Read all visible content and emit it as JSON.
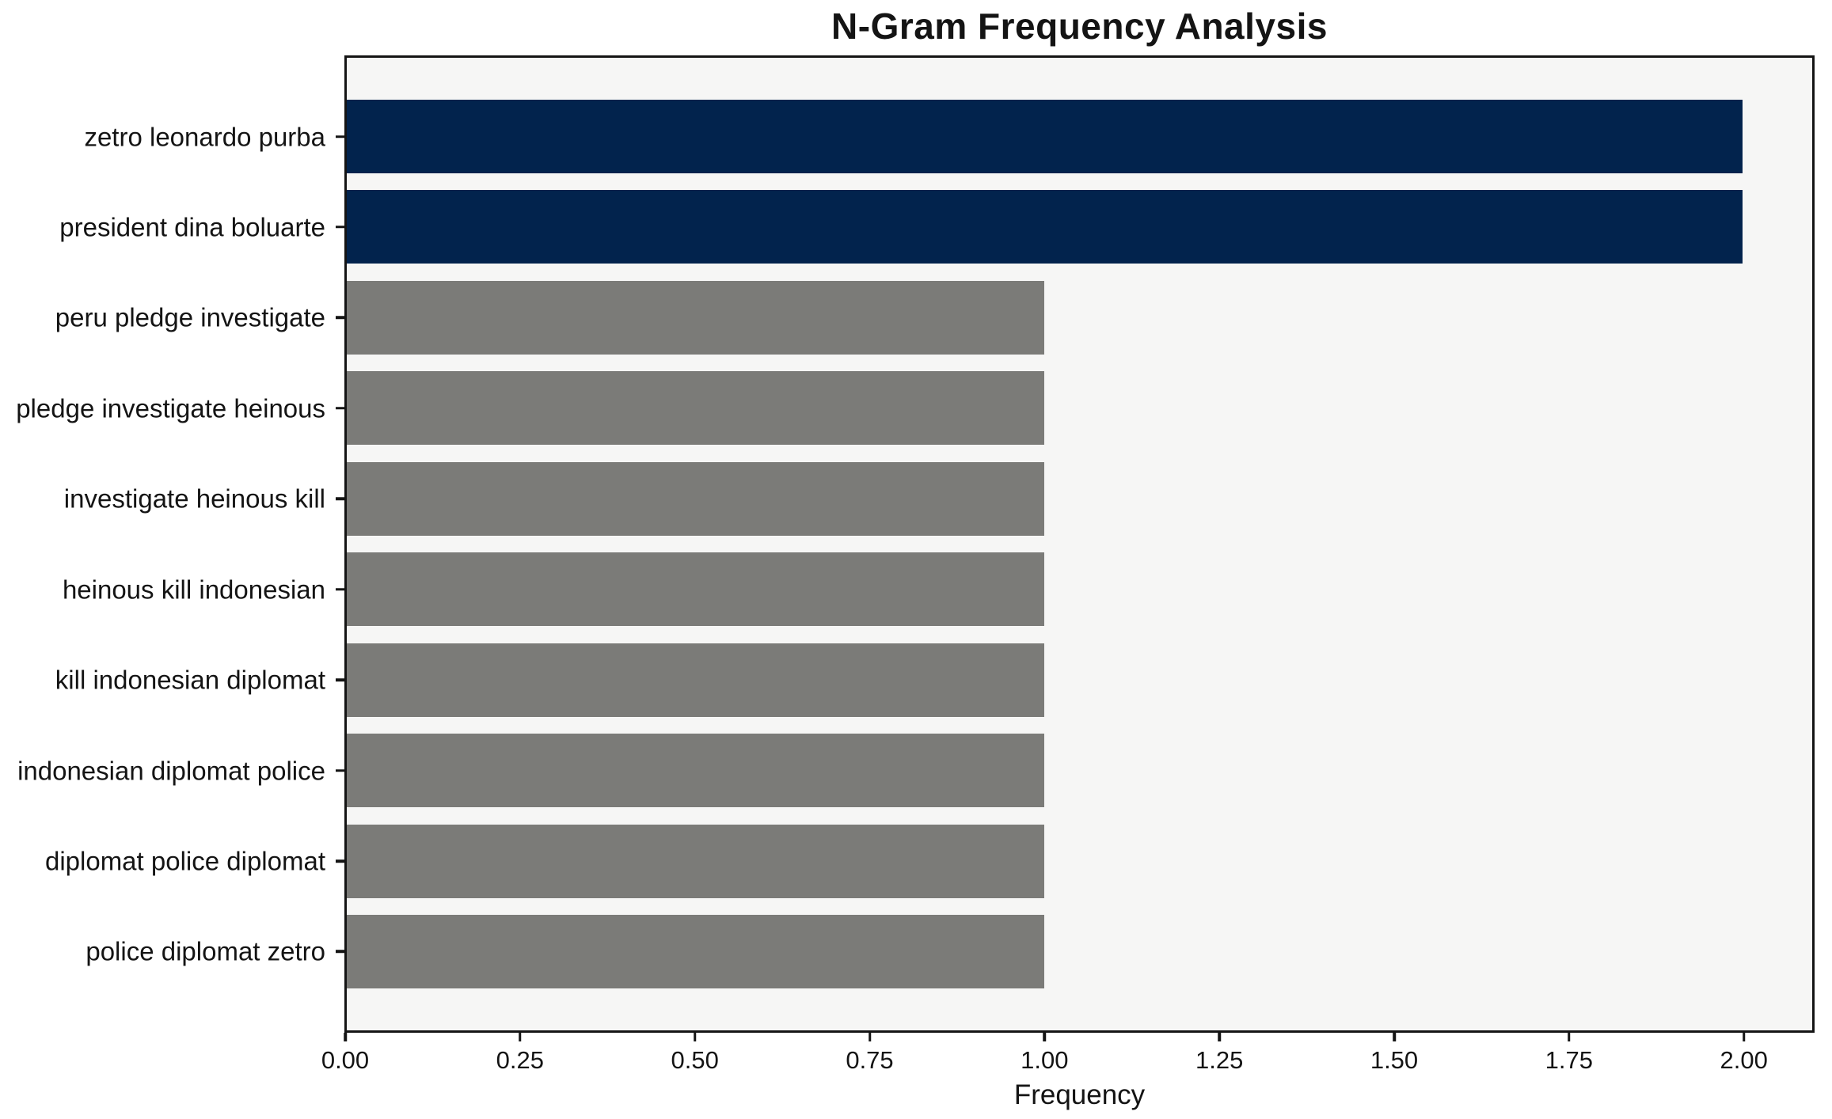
{
  "chart_data": {
    "type": "bar",
    "orientation": "horizontal",
    "title": "N-Gram Frequency Analysis",
    "xlabel": "Frequency",
    "ylabel": "",
    "categories": [
      "zetro leonardo purba",
      "president dina boluarte",
      "peru pledge investigate",
      "pledge investigate heinous",
      "investigate heinous kill",
      "heinous kill indonesian",
      "kill indonesian diplomat",
      "indonesian diplomat police",
      "diplomat police diplomat",
      "police diplomat zetro"
    ],
    "values": [
      2,
      2,
      1,
      1,
      1,
      1,
      1,
      1,
      1,
      1
    ],
    "bar_colors": [
      "#02234d",
      "#02234d",
      "#7b7b78",
      "#7b7b78",
      "#7b7b78",
      "#7b7b78",
      "#7b7b78",
      "#7b7b78",
      "#7b7b78",
      "#7b7b78"
    ],
    "x_ticks": [
      "0.00",
      "0.25",
      "0.50",
      "0.75",
      "1.00",
      "1.25",
      "1.50",
      "1.75",
      "2.00"
    ],
    "x_tick_values": [
      0,
      0.25,
      0.5,
      0.75,
      1.0,
      1.25,
      1.5,
      1.75,
      2.0
    ],
    "xlim": [
      0,
      2.1
    ],
    "grid": false,
    "legend": "none",
    "colors": {
      "highlight_bar": "#02234d",
      "default_bar": "#7b7b78",
      "plot_background": "#f6f6f5",
      "figure_background": "#ffffff",
      "axis": "#141414"
    }
  }
}
